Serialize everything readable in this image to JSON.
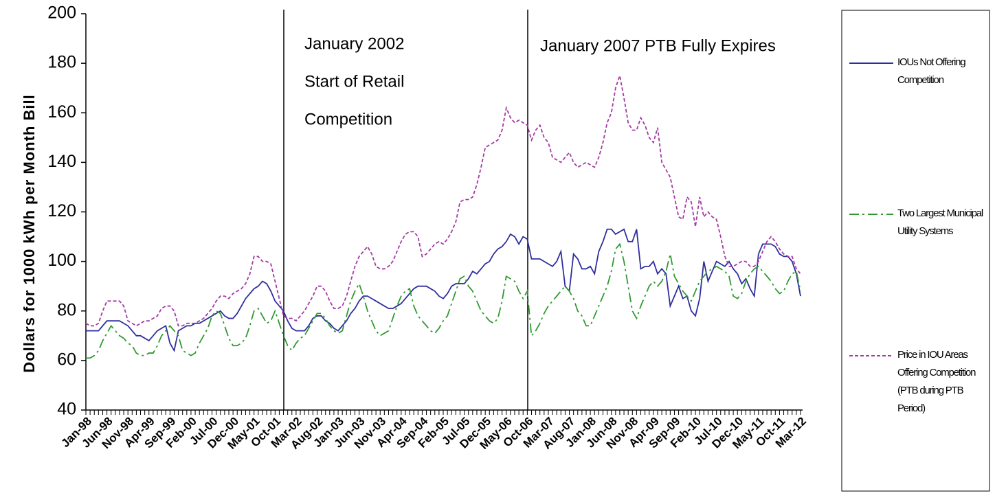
{
  "chart_data": {
    "type": "line",
    "y_axis_label": "Dollars for 1000 kWh per Month Bill",
    "annotations": [
      "January 2002",
      "Start of Retail",
      "Competition",
      "January 2007 PTB Fully Expires"
    ],
    "ylim": [
      40,
      200
    ],
    "yticks": [
      40,
      60,
      80,
      100,
      120,
      140,
      160,
      180,
      200
    ],
    "categories": [
      "Jan-98",
      null,
      null,
      null,
      null,
      "Jun-98",
      null,
      null,
      null,
      null,
      "Nov-98",
      null,
      null,
      null,
      null,
      "Apr-99",
      null,
      null,
      null,
      null,
      "Sep-99",
      null,
      null,
      null,
      null,
      "Feb-00",
      null,
      null,
      null,
      null,
      "Jul-00",
      null,
      null,
      null,
      null,
      "Dec-00",
      null,
      null,
      null,
      null,
      "May-01",
      null,
      null,
      null,
      null,
      "Oct-01",
      null,
      null,
      null,
      null,
      "Mar-02",
      null,
      null,
      null,
      null,
      "Aug-02",
      null,
      null,
      null,
      null,
      "Jan-03",
      null,
      null,
      null,
      null,
      "Jun-03",
      null,
      null,
      null,
      null,
      "Nov-03",
      null,
      null,
      null,
      null,
      "Apr-04",
      null,
      null,
      null,
      null,
      "Sep-04",
      null,
      null,
      null,
      null,
      "Feb-05",
      null,
      null,
      null,
      null,
      "Jul-05",
      null,
      null,
      null,
      null,
      "Dec-05",
      null,
      null,
      null,
      null,
      "May-06",
      null,
      null,
      null,
      null,
      "Oct-06",
      null,
      null,
      null,
      null,
      "Mar-07",
      null,
      null,
      null,
      null,
      "Aug-07",
      null,
      null,
      null,
      null,
      "Jan-08",
      null,
      null,
      null,
      null,
      "Jun-08",
      null,
      null,
      null,
      null,
      "Nov-08",
      null,
      null,
      null,
      null,
      "Apr-09",
      null,
      null,
      null,
      null,
      "Sep-09",
      null,
      null,
      null,
      null,
      "Feb-10",
      null,
      null,
      null,
      null,
      "Jul-10",
      null,
      null,
      null,
      null,
      "Dec-10",
      null,
      null,
      null,
      null,
      "May-11",
      null,
      null,
      null,
      null,
      "Oct-11",
      null,
      null,
      null,
      null,
      "Mar-12"
    ],
    "series": [
      {
        "name": "IOUs Not Offering Competition",
        "color": "#2e2e9e",
        "style": "solid",
        "values": [
          72,
          72,
          72,
          72,
          74,
          76,
          76,
          76,
          76,
          75,
          74,
          72,
          70,
          70,
          69,
          68,
          70,
          72,
          73,
          74,
          67,
          64,
          72,
          73,
          74,
          74,
          75,
          75,
          76,
          77,
          78,
          79,
          80,
          78,
          77,
          77,
          79,
          82,
          85,
          87,
          89,
          90,
          92,
          91,
          88,
          84,
          82,
          80,
          76,
          73,
          72,
          72,
          72,
          74,
          77,
          78,
          78,
          76,
          75,
          73,
          72,
          74,
          76,
          79,
          81,
          84,
          86,
          86,
          85,
          84,
          83,
          82,
          81,
          81,
          82,
          83,
          85,
          87,
          89,
          90,
          90,
          90,
          89,
          88,
          86,
          85,
          87,
          90,
          91,
          91,
          91,
          93,
          96,
          95,
          97,
          99,
          100,
          103,
          105,
          106,
          108,
          111,
          110,
          107,
          110,
          109,
          101,
          101,
          101,
          100,
          99,
          98,
          100,
          104,
          90,
          88,
          103,
          101,
          97,
          97,
          98,
          95,
          104,
          108,
          113,
          113,
          111,
          112,
          113,
          108,
          108,
          113,
          97,
          98,
          98,
          100,
          95,
          97,
          95,
          82,
          86,
          90,
          85,
          86,
          80,
          78,
          85,
          100,
          92,
          96,
          100,
          99,
          98,
          100,
          97,
          95,
          91,
          93,
          89,
          86,
          103,
          107,
          107,
          107,
          106,
          103,
          102,
          102,
          100,
          95,
          86
        ]
      },
      {
        "name": "Two Largest Municipal Utility Systems",
        "color": "#2f9a2f",
        "style": "dashdot",
        "values": [
          61,
          61,
          62,
          64,
          68,
          71,
          74,
          72,
          70,
          69,
          67,
          66,
          63,
          62,
          62,
          63,
          63,
          66,
          70,
          72,
          74,
          72,
          70,
          64,
          63,
          62,
          63,
          67,
          70,
          73,
          78,
          80,
          79,
          74,
          69,
          66,
          66,
          67,
          69,
          74,
          80,
          81,
          78,
          75,
          76,
          80,
          75,
          70,
          66,
          64,
          67,
          69,
          70,
          73,
          76,
          79,
          79,
          77,
          74,
          72,
          71,
          72,
          78,
          84,
          88,
          91,
          86,
          80,
          76,
          72,
          70,
          71,
          72,
          77,
          82,
          86,
          88,
          89,
          82,
          78,
          76,
          74,
          72,
          71,
          73,
          76,
          78,
          83,
          88,
          93,
          94,
          90,
          88,
          84,
          80,
          78,
          76,
          75,
          77,
          84,
          94,
          93,
          92,
          88,
          85,
          88,
          70,
          72,
          75,
          79,
          82,
          84,
          86,
          88,
          90,
          88,
          85,
          80,
          78,
          74,
          74,
          78,
          82,
          86,
          90,
          96,
          105,
          107,
          100,
          90,
          80,
          77,
          82,
          86,
          90,
          92,
          90,
          92,
          96,
          103,
          94,
          91,
          88,
          86,
          84,
          88,
          92,
          94,
          96,
          97,
          98,
          97,
          96,
          94,
          86,
          85,
          87,
          92,
          95,
          97,
          98,
          96,
          94,
          92,
          89,
          87,
          88,
          92,
          95,
          96,
          88
        ]
      },
      {
        "name": "Price in IOU Areas Offering Competition (PTB during PTB Period)",
        "color": "#a33aa3",
        "style": "dashed",
        "values": [
          75,
          74,
          74,
          75,
          80,
          84,
          84,
          84,
          84,
          82,
          76,
          75,
          74,
          75,
          76,
          76,
          77,
          78,
          81,
          82,
          82,
          80,
          74,
          74,
          75,
          75,
          75,
          76,
          77,
          79,
          81,
          84,
          86,
          86,
          85,
          87,
          88,
          89,
          91,
          95,
          102,
          102,
          100,
          100,
          99,
          92,
          85,
          78,
          77,
          77,
          76,
          78,
          80,
          83,
          86,
          90,
          90,
          88,
          84,
          81,
          81,
          82,
          86,
          92,
          98,
          102,
          104,
          106,
          103,
          98,
          97,
          97,
          98,
          100,
          104,
          108,
          111,
          112,
          112,
          110,
          102,
          103,
          105,
          107,
          108,
          107,
          109,
          112,
          116,
          124,
          125,
          125,
          126,
          131,
          138,
          146,
          147,
          148,
          149,
          153,
          162,
          158,
          156,
          157,
          156,
          155,
          149,
          153,
          155,
          150,
          148,
          142,
          141,
          140,
          142,
          144,
          140,
          138,
          139,
          140,
          139,
          138,
          142,
          148,
          156,
          160,
          170,
          175,
          166,
          156,
          153,
          153,
          158,
          155,
          150,
          148,
          154,
          140,
          137,
          134,
          126,
          118,
          117,
          126,
          124,
          114,
          126,
          118,
          120,
          118,
          117,
          110,
          102,
          98,
          98,
          99,
          100,
          100,
          98,
          98,
          100,
          104,
          108,
          110,
          108,
          105,
          103,
          102,
          102,
          97,
          95
        ]
      }
    ],
    "legend": "right"
  }
}
